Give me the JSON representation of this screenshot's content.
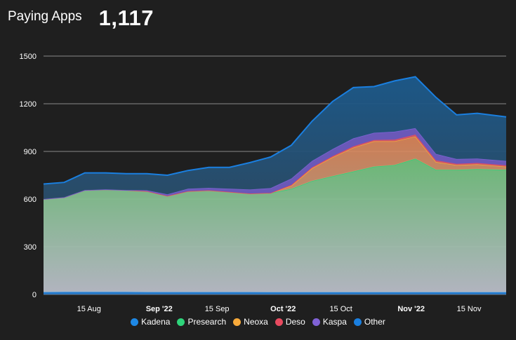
{
  "header": {
    "title": "Paying Apps",
    "value": "1,117"
  },
  "colors": {
    "Kadena": "#1e88e5",
    "Presearch": "#2ed47a",
    "Neoxa": "#f7a93a",
    "Deso": "#e84a5f",
    "Kaspa": "#8062d6",
    "Other": "#1a7fe0"
  },
  "chart_data": {
    "type": "area",
    "stacked": true,
    "ylim": [
      0,
      1500
    ],
    "yticks": [
      0,
      300,
      600,
      900,
      1200,
      1500
    ],
    "xlim": [
      "2022-08-04",
      "2022-11-24"
    ],
    "xticks": [
      {
        "date": "2022-08-15",
        "label": "15 Aug",
        "bold": false
      },
      {
        "date": "2022-09-01",
        "label": "Sep '22",
        "bold": true
      },
      {
        "date": "2022-09-15",
        "label": "15 Sep",
        "bold": false
      },
      {
        "date": "2022-10-01",
        "label": "Oct '22",
        "bold": true
      },
      {
        "date": "2022-10-15",
        "label": "15 Oct",
        "bold": false
      },
      {
        "date": "2022-11-01",
        "label": "Nov '22",
        "bold": true
      },
      {
        "date": "2022-11-15",
        "label": "15 Nov",
        "bold": false
      }
    ],
    "grid": true,
    "legend_position": "bottom",
    "x": [
      "2022-08-04",
      "2022-08-09",
      "2022-08-14",
      "2022-08-19",
      "2022-08-24",
      "2022-08-29",
      "2022-09-03",
      "2022-09-08",
      "2022-09-13",
      "2022-09-18",
      "2022-09-23",
      "2022-09-28",
      "2022-10-03",
      "2022-10-08",
      "2022-10-13",
      "2022-10-18",
      "2022-10-23",
      "2022-10-28",
      "2022-11-02",
      "2022-11-07",
      "2022-11-12",
      "2022-11-17",
      "2022-11-24"
    ],
    "series": [
      {
        "name": "Kadena",
        "values": [
          15,
          16,
          16,
          16,
          16,
          15,
          15,
          15,
          15,
          15,
          15,
          14,
          14,
          14,
          14,
          14,
          14,
          14,
          14,
          14,
          14,
          14,
          14
        ]
      },
      {
        "name": "Presearch",
        "values": [
          585,
          595,
          640,
          645,
          640,
          635,
          605,
          635,
          640,
          630,
          620,
          625,
          650,
          700,
          730,
          760,
          790,
          800,
          840,
          770,
          770,
          775,
          770
        ]
      },
      {
        "name": "Neoxa",
        "values": [
          0,
          0,
          0,
          0,
          0,
          0,
          0,
          0,
          0,
          0,
          0,
          0,
          20,
          80,
          120,
          150,
          160,
          150,
          140,
          50,
          30,
          30,
          20
        ]
      },
      {
        "name": "Deso",
        "values": [
          0,
          0,
          0,
          0,
          0,
          0,
          0,
          0,
          0,
          0,
          0,
          0,
          5,
          6,
          6,
          8,
          8,
          10,
          12,
          10,
          8,
          8,
          8
        ]
      },
      {
        "name": "Kaspa",
        "values": [
          0,
          0,
          0,
          0,
          0,
          5,
          10,
          15,
          15,
          20,
          25,
          30,
          40,
          40,
          45,
          50,
          45,
          50,
          40,
          40,
          30,
          28,
          28
        ]
      },
      {
        "name": "Other",
        "values": [
          95,
          94,
          109,
          104,
          104,
          105,
          120,
          115,
          130,
          135,
          170,
          196,
          210,
          250,
          300,
          320,
          291,
          320,
          324,
          356,
          278,
          285,
          277
        ]
      }
    ]
  },
  "legend": [
    "Kadena",
    "Presearch",
    "Neoxa",
    "Deso",
    "Kaspa",
    "Other"
  ]
}
